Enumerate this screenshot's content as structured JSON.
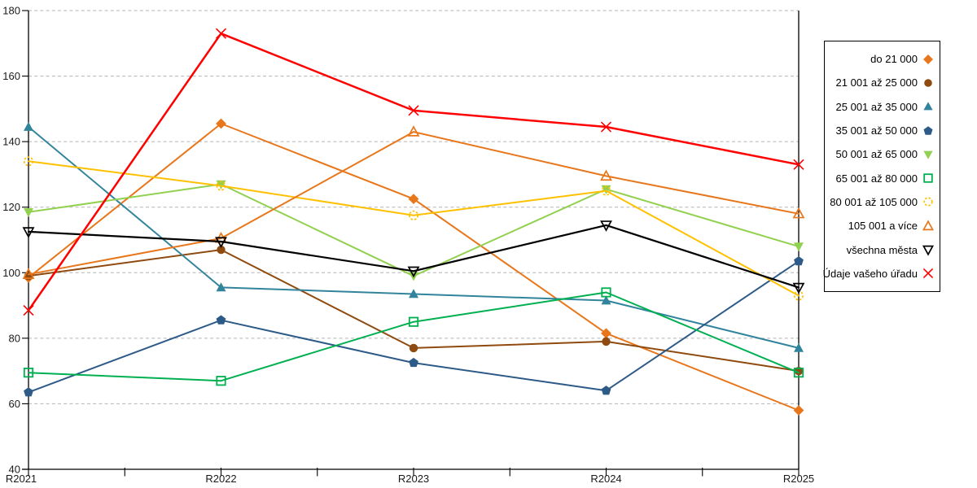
{
  "chart_data": {
    "type": "line",
    "title": "",
    "xlabel": "",
    "ylabel": "",
    "categories": [
      "R2021",
      "R2022",
      "R2023",
      "R2024",
      "R2025"
    ],
    "y_ticks": [
      180,
      160,
      140,
      120,
      100,
      80,
      60,
      40
    ],
    "ylim": [
      40,
      180
    ],
    "grid": "horizontal-dashed",
    "legend_position": "right",
    "gridline_color": "#b3b3b3",
    "axis_color": "#000000",
    "series": [
      {
        "name": "do 21 000",
        "color": "#E8761A",
        "marker": "diamond",
        "marker_fill": "solid",
        "values": [
          98.5,
          145.5,
          122.5,
          81.5,
          58
        ]
      },
      {
        "name": "21 001 až 25 000",
        "color": "#8F4A0F",
        "marker": "circle",
        "marker_fill": "solid",
        "values": [
          99,
          107,
          77,
          79,
          70
        ]
      },
      {
        "name": "25 001 až 35 000",
        "color": "#31849B",
        "marker": "triangle-up",
        "marker_fill": "solid",
        "values": [
          144.5,
          95.5,
          93.5,
          91.5,
          77
        ]
      },
      {
        "name": "35 001 až 50 000",
        "color": "#2D5A87",
        "marker": "pentagon",
        "marker_fill": "solid",
        "values": [
          63.5,
          85.5,
          72.5,
          64,
          103.5
        ]
      },
      {
        "name": "50 001 až 65 000",
        "color": "#92D050",
        "marker": "triangle-down",
        "marker_fill": "solid",
        "values": [
          118.5,
          127,
          99,
          125.5,
          108
        ]
      },
      {
        "name": "65 001 až 80 000",
        "color": "#00B050",
        "marker": "square",
        "marker_fill": "open",
        "values": [
          69.5,
          67,
          85,
          94,
          69.5
        ]
      },
      {
        "name": "80 001 až 105 000",
        "color": "#FFC000",
        "marker": "circle-dashed",
        "marker_fill": "open",
        "values": [
          134,
          126.5,
          117.5,
          125,
          93
        ]
      },
      {
        "name": "105 001 a více",
        "color": "#E8761A",
        "marker": "triangle-up",
        "marker_fill": "open",
        "values": [
          99.5,
          110.5,
          143,
          129.5,
          118
        ]
      },
      {
        "name": "všechna města",
        "color": "#000000",
        "marker": "triangle-down",
        "marker_fill": "open",
        "values": [
          112.5,
          109.5,
          100.5,
          114.5,
          95.5
        ]
      },
      {
        "name": "Údaje vašeho úřadu",
        "color": "#FF0000",
        "marker": "x",
        "marker_fill": "open",
        "values": [
          88.5,
          173,
          149.5,
          144.5,
          133
        ]
      }
    ]
  }
}
